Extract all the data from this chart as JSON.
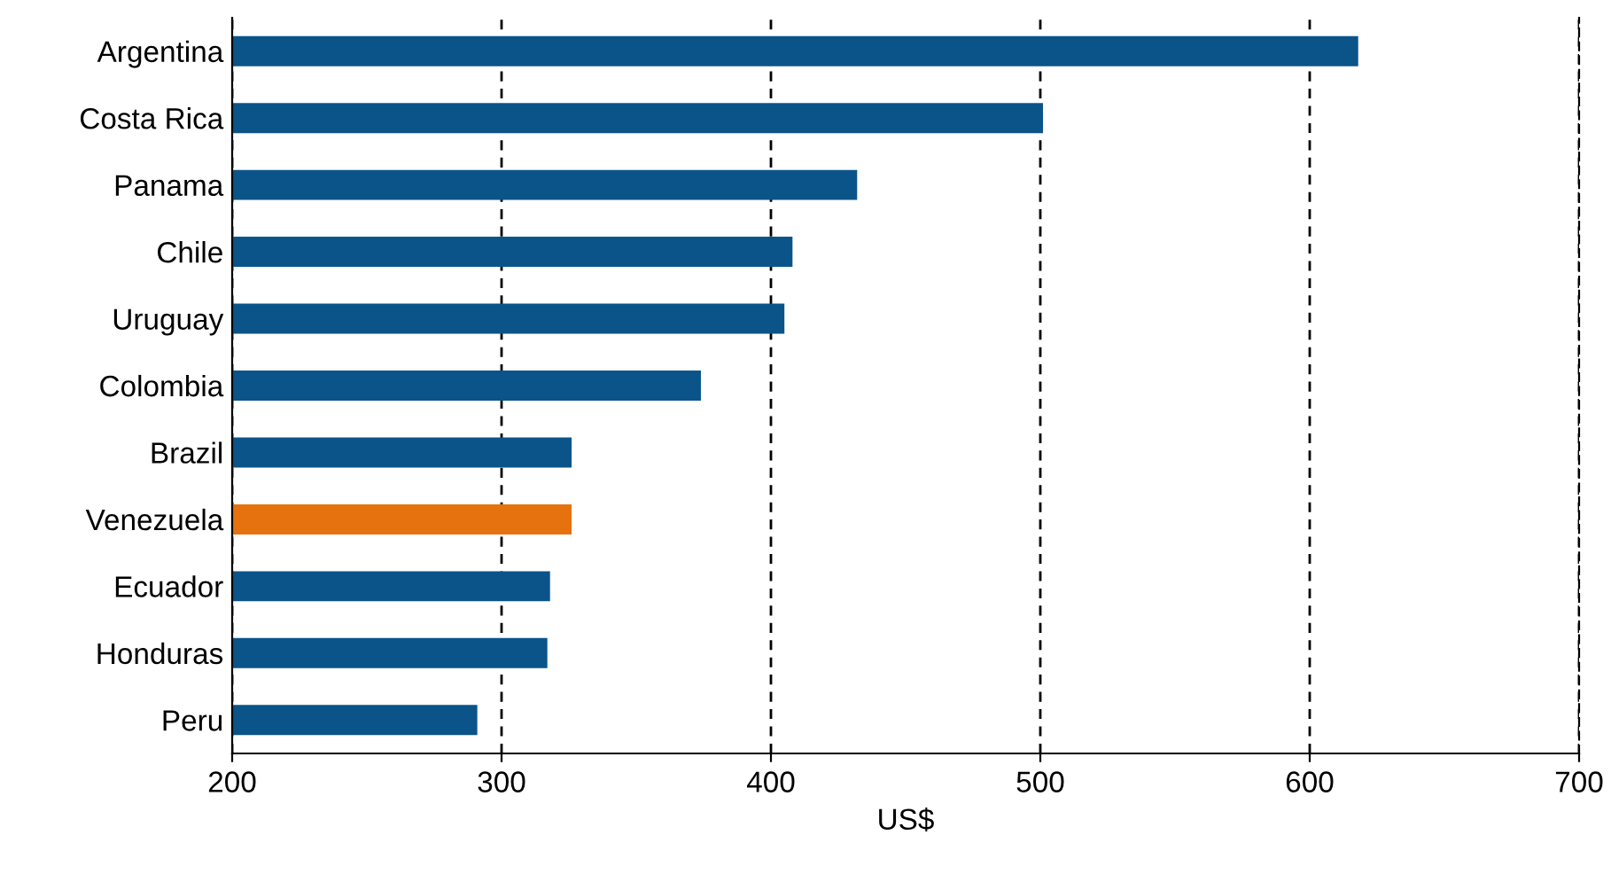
{
  "chart_data": {
    "type": "bar",
    "orientation": "horizontal",
    "xlabel": "US$",
    "categories": [
      "Argentina",
      "Costa Rica",
      "Panama",
      "Chile",
      "Uruguay",
      "Colombia",
      "Brazil",
      "Venezuela",
      "Ecuador",
      "Honduras",
      "Peru"
    ],
    "values": [
      618,
      501,
      432,
      408,
      405,
      374,
      326,
      326,
      318,
      317,
      291
    ],
    "colors": [
      "#0a5489",
      "#0a5489",
      "#0a5489",
      "#0a5489",
      "#0a5489",
      "#0a5489",
      "#0a5489",
      "#e6720f",
      "#0a5489",
      "#0a5489",
      "#0a5489"
    ],
    "xlim": [
      200,
      700
    ],
    "xticks": [
      200,
      300,
      400,
      500,
      600,
      700
    ],
    "grid": "x",
    "line_style": "dashed"
  }
}
